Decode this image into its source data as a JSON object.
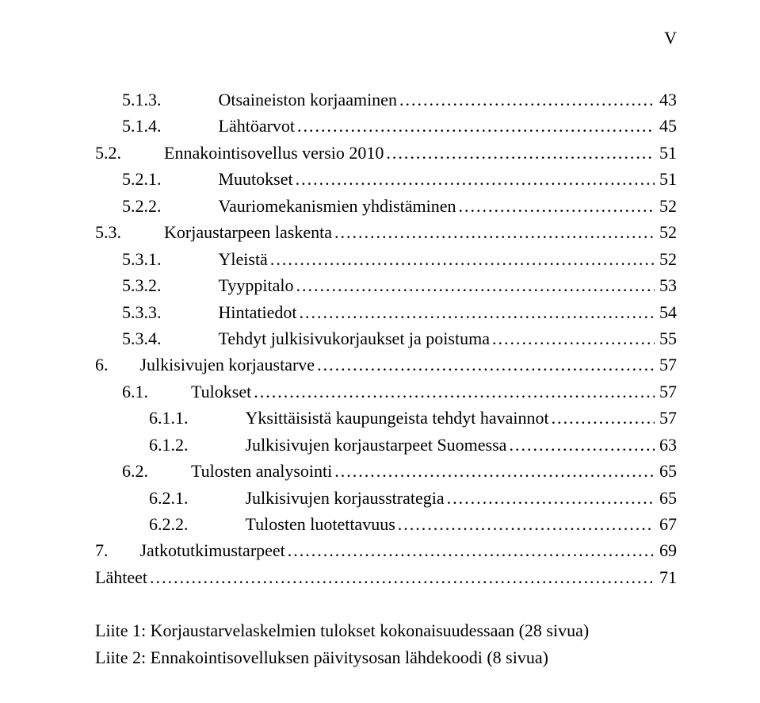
{
  "page_label": "V",
  "font": {
    "title_size_pt": 16,
    "family": "Times New Roman",
    "text_color": "#000000",
    "bg_color": "#ffffff"
  },
  "toc": [
    {
      "indent": 1,
      "num": "5.1.3.",
      "gap": "subsub",
      "title": "Otsaineiston korjaaminen",
      "page": "43"
    },
    {
      "indent": 1,
      "num": "5.1.4.",
      "gap": "subsub",
      "title": "Lähtöarvot",
      "page": "45"
    },
    {
      "indent": 0,
      "num": "5.2.",
      "gap": "sub",
      "title": "Ennakointisovellus versio 2010",
      "page": "51"
    },
    {
      "indent": 1,
      "num": "5.2.1.",
      "gap": "subsub",
      "title": "Muutokset",
      "page": "51"
    },
    {
      "indent": 1,
      "num": "5.2.2.",
      "gap": "subsub",
      "title": "Vauriomekanismien yhdistäminen",
      "page": "52"
    },
    {
      "indent": 0,
      "num": "5.3.",
      "gap": "sub",
      "title": "Korjaustarpeen laskenta",
      "page": "52"
    },
    {
      "indent": 1,
      "num": "5.3.1.",
      "gap": "subsub",
      "title": "Yleistä",
      "page": "52"
    },
    {
      "indent": 1,
      "num": "5.3.2.",
      "gap": "subsub",
      "title": "Tyyppitalo",
      "page": "53"
    },
    {
      "indent": 1,
      "num": "5.3.3.",
      "gap": "subsub",
      "title": "Hintatiedot",
      "page": "54"
    },
    {
      "indent": 1,
      "num": "5.3.4.",
      "gap": "subsub",
      "title": "Tehdyt julkisivukorjaukset ja poistuma",
      "page": "55"
    },
    {
      "indent": 0,
      "num": "6.",
      "gap": "wide",
      "title": "Julkisivujen korjaustarve",
      "page": "57"
    },
    {
      "indent": 1,
      "num": "6.1.",
      "gap": "sub",
      "title": "Tulokset",
      "page": "57"
    },
    {
      "indent": 2,
      "num": "6.1.1.",
      "gap": "subsub",
      "title": "Yksittäisistä kaupungeista tehdyt havainnot",
      "page": "57"
    },
    {
      "indent": 2,
      "num": "6.1.2.",
      "gap": "subsub",
      "title": "Julkisivujen korjaustarpeet Suomessa",
      "page": "63"
    },
    {
      "indent": 1,
      "num": "6.2.",
      "gap": "sub",
      "title": "Tulosten analysointi",
      "page": "65"
    },
    {
      "indent": 2,
      "num": "6.2.1.",
      "gap": "subsub",
      "title": "Julkisivujen korjausstrategia",
      "page": "65"
    },
    {
      "indent": 2,
      "num": "6.2.2.",
      "gap": "subsub",
      "title": "Tulosten luotettavuus",
      "page": "67"
    },
    {
      "indent": 0,
      "num": "7.",
      "gap": "wide",
      "title": "Jatkotutkimustarpeet",
      "page": "69"
    },
    {
      "indent": 0,
      "num": "",
      "gap": "",
      "title": "Lähteet",
      "page": "71"
    }
  ],
  "appendix": [
    "Liite 1: Korjaustarvelaskelmien tulokset kokonaisuudessaan (28 sivua)",
    "Liite 2: Ennakointisovelluksen päivitysosan lähdekoodi (8 sivua)"
  ]
}
